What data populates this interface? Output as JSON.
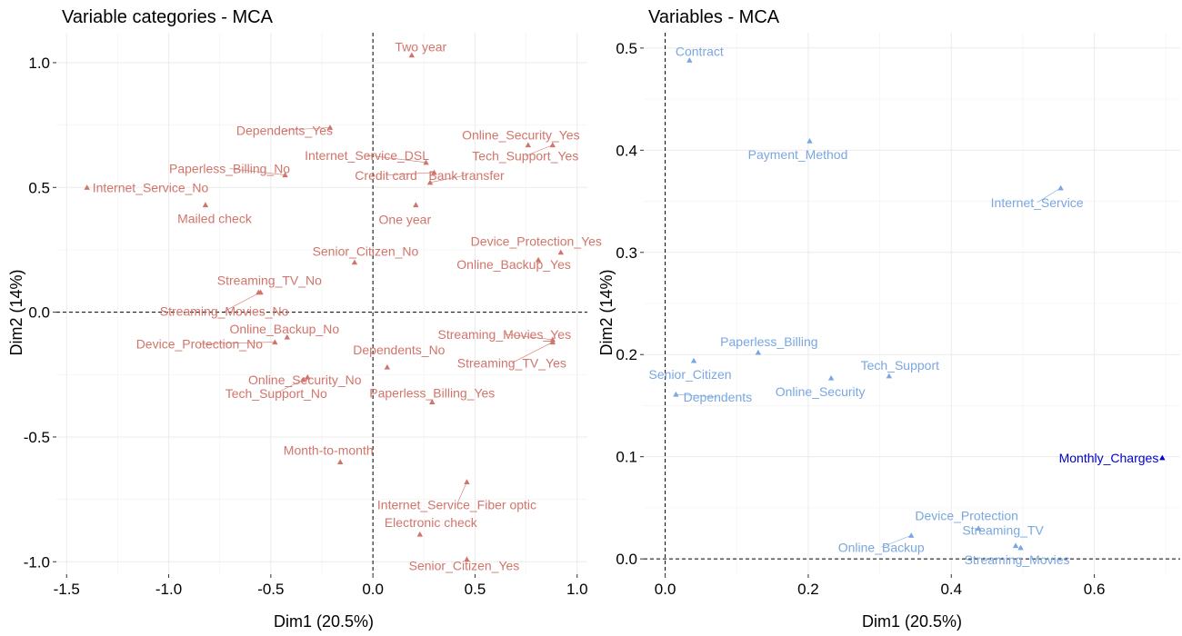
{
  "chart_data": [
    {
      "type": "scatter",
      "title": "Variable categories - MCA",
      "xlabel": "Dim1 (20.5%)",
      "ylabel": "Dim2 (14%)",
      "xlim": [
        -1.55,
        1.05
      ],
      "ylim": [
        -1.05,
        1.12
      ],
      "xticks": [
        "-1.5",
        "-1.0",
        "-0.5",
        "0.0",
        "0.5",
        "1.0"
      ],
      "yticks": [
        "-1.0",
        "-0.5",
        "0.0",
        "0.5",
        "1.0"
      ],
      "grid": true,
      "color": "#d1756b",
      "points": [
        {
          "label": "Two year",
          "x": 0.19,
          "y": 1.03
        },
        {
          "label": "Dependents_Yes",
          "x": -0.21,
          "y": 0.74
        },
        {
          "label": "Online_Security_Yes",
          "x": 0.76,
          "y": 0.67
        },
        {
          "label": "Tech_Support_Yes",
          "x": 0.88,
          "y": 0.67
        },
        {
          "label": "Internet_Service_DSL",
          "x": 0.26,
          "y": 0.6
        },
        {
          "label": "Credit card",
          "x": 0.3,
          "y": 0.56
        },
        {
          "label": "Paperless_Billing_No",
          "x": -0.43,
          "y": 0.55
        },
        {
          "label": "Internet_Service_No",
          "x": -1.4,
          "y": 0.5
        },
        {
          "label": "Bank transfer",
          "x": 0.28,
          "y": 0.52
        },
        {
          "label": "Mailed check",
          "x": -0.82,
          "y": 0.43
        },
        {
          "label": "One year",
          "x": 0.21,
          "y": 0.43
        },
        {
          "label": "Device_Protection_Yes",
          "x": 0.92,
          "y": 0.24
        },
        {
          "label": "Senior_Citizen_No",
          "x": -0.09,
          "y": 0.2
        },
        {
          "label": "Online_Backup_Yes",
          "x": 0.81,
          "y": 0.21
        },
        {
          "label": "Streaming_TV_No",
          "x": -0.56,
          "y": 0.08
        },
        {
          "label": "Streaming_Movies_No",
          "x": -0.55,
          "y": 0.08
        },
        {
          "label": "Online_Backup_No",
          "x": -0.42,
          "y": -0.1
        },
        {
          "label": "Streaming_Movies_Yes",
          "x": 0.88,
          "y": -0.11
        },
        {
          "label": "Device_Protection_No",
          "x": -0.48,
          "y": -0.12
        },
        {
          "label": "Dependents_No",
          "x": 0.07,
          "y": -0.22
        },
        {
          "label": "Streaming_TV_Yes",
          "x": 0.88,
          "y": -0.12
        },
        {
          "label": "Online_Security_No",
          "x": -0.32,
          "y": -0.26
        },
        {
          "label": "Tech_Support_No",
          "x": -0.34,
          "y": -0.27
        },
        {
          "label": "Paperless_Billing_Yes",
          "x": 0.29,
          "y": -0.36
        },
        {
          "label": "Month-to-month",
          "x": -0.16,
          "y": -0.6
        },
        {
          "label": "Internet_Service_Fiber optic",
          "x": 0.46,
          "y": -0.68
        },
        {
          "label": "Electronic check",
          "x": 0.23,
          "y": -0.89
        },
        {
          "label": "Senior_Citizen_Yes",
          "x": 0.46,
          "y": -0.99
        }
      ]
    },
    {
      "type": "scatter",
      "title": "Variables - MCA",
      "xlabel": "Dim1 (20.5%)",
      "ylabel": "Dim2 (14%)",
      "xlim": [
        -0.03,
        0.72
      ],
      "ylim": [
        -0.015,
        0.515
      ],
      "xticks": [
        "0.0",
        "0.2",
        "0.4",
        "0.6"
      ],
      "yticks": [
        "0.0",
        "0.1",
        "0.2",
        "0.3",
        "0.4",
        "0.5"
      ],
      "grid": true,
      "color": "#7aa7e0",
      "highlight_color": "#0000cd",
      "points": [
        {
          "label": "Contract",
          "x": 0.034,
          "y": 0.488
        },
        {
          "label": "Payment_Method",
          "x": 0.202,
          "y": 0.409
        },
        {
          "label": "Internet_Service",
          "x": 0.553,
          "y": 0.363
        },
        {
          "label": "Paperless_Billing",
          "x": 0.13,
          "y": 0.202
        },
        {
          "label": "Senior_Citizen",
          "x": 0.04,
          "y": 0.194
        },
        {
          "label": "Tech_Support",
          "x": 0.313,
          "y": 0.179
        },
        {
          "label": "Online_Security",
          "x": 0.232,
          "y": 0.177
        },
        {
          "label": "Dependents",
          "x": 0.015,
          "y": 0.161
        },
        {
          "label": "Monthly_Charges",
          "x": 0.695,
          "y": 0.099,
          "highlight": true
        },
        {
          "label": "Device_Protection",
          "x": 0.438,
          "y": 0.03
        },
        {
          "label": "Online_Backup",
          "x": 0.344,
          "y": 0.023
        },
        {
          "label": "Streaming_TV",
          "x": 0.49,
          "y": 0.013
        },
        {
          "label": "Streaming_Movies",
          "x": 0.497,
          "y": 0.011
        }
      ]
    }
  ]
}
